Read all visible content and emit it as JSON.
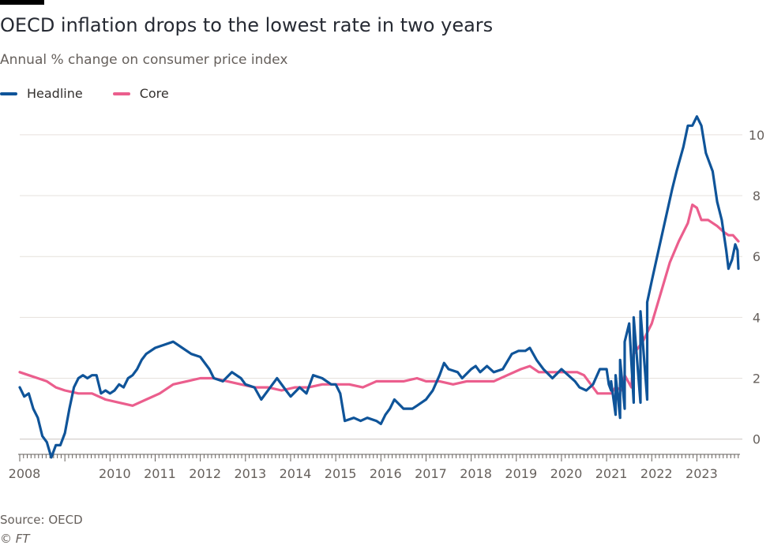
{
  "title": "OECD inflation drops to the lowest rate in two years",
  "subtitle": "Annual % change on consumer price index",
  "source": "Source: OECD",
  "credit": "© FT",
  "colors": {
    "headline": "#0f5499",
    "core": "#eb5e8d",
    "grid": "#e6e1dc",
    "axis": "#66605c",
    "text": "#262a33"
  },
  "chart_data": {
    "type": "line",
    "title": "OECD inflation drops to the lowest rate in two years",
    "subtitle": "Annual % change on consumer price index",
    "xlabel": "",
    "ylabel": "",
    "xlim": [
      2008.0,
      2023.92
    ],
    "ylim": [
      -0.5,
      10.8
    ],
    "yticks": [
      0,
      2,
      4,
      6,
      8,
      10
    ],
    "xticks": [
      2008,
      2010,
      2011,
      2012,
      2013,
      2014,
      2015,
      2016,
      2017,
      2018,
      2019,
      2020,
      2021,
      2022,
      2023
    ],
    "legend_position": "top-left",
    "grid": true,
    "series": [
      {
        "name": "Headline",
        "color": "#0f5499",
        "points": [
          [
            2008.0,
            1.7
          ],
          [
            2008.1,
            1.4
          ],
          [
            2008.2,
            1.5
          ],
          [
            2008.3,
            1.0
          ],
          [
            2008.4,
            0.7
          ],
          [
            2008.5,
            0.1
          ],
          [
            2008.6,
            -0.1
          ],
          [
            2008.7,
            -0.6
          ],
          [
            2008.8,
            -0.2
          ],
          [
            2008.9,
            -0.2
          ],
          [
            2009.0,
            0.2
          ],
          [
            2009.1,
            1.0
          ],
          [
            2009.2,
            1.7
          ],
          [
            2009.3,
            2.0
          ],
          [
            2009.4,
            2.1
          ],
          [
            2009.5,
            2.0
          ],
          [
            2009.6,
            2.1
          ],
          [
            2009.7,
            2.1
          ],
          [
            2009.8,
            1.5
          ],
          [
            2009.9,
            1.6
          ],
          [
            2010.0,
            1.5
          ],
          [
            2010.1,
            1.6
          ],
          [
            2010.2,
            1.8
          ],
          [
            2010.3,
            1.7
          ],
          [
            2010.4,
            2.0
          ],
          [
            2010.5,
            2.1
          ],
          [
            2010.6,
            2.3
          ],
          [
            2010.7,
            2.6
          ],
          [
            2010.8,
            2.8
          ],
          [
            2011.0,
            3.0
          ],
          [
            2011.2,
            3.1
          ],
          [
            2011.4,
            3.2
          ],
          [
            2011.6,
            3.0
          ],
          [
            2011.8,
            2.8
          ],
          [
            2012.0,
            2.7
          ],
          [
            2012.2,
            2.3
          ],
          [
            2012.3,
            2.0
          ],
          [
            2012.5,
            1.9
          ],
          [
            2012.7,
            2.2
          ],
          [
            2012.9,
            2.0
          ],
          [
            2013.0,
            1.8
          ],
          [
            2013.2,
            1.7
          ],
          [
            2013.35,
            1.3
          ],
          [
            2013.55,
            1.7
          ],
          [
            2013.7,
            2.0
          ],
          [
            2013.9,
            1.6
          ],
          [
            2014.0,
            1.4
          ],
          [
            2014.2,
            1.7
          ],
          [
            2014.35,
            1.5
          ],
          [
            2014.5,
            2.1
          ],
          [
            2014.7,
            2.0
          ],
          [
            2014.9,
            1.8
          ],
          [
            2015.0,
            1.8
          ],
          [
            2015.1,
            1.5
          ],
          [
            2015.2,
            0.6
          ],
          [
            2015.4,
            0.7
          ],
          [
            2015.55,
            0.6
          ],
          [
            2015.7,
            0.7
          ],
          [
            2015.9,
            0.6
          ],
          [
            2016.0,
            0.5
          ],
          [
            2016.1,
            0.8
          ],
          [
            2016.2,
            1.0
          ],
          [
            2016.3,
            1.3
          ],
          [
            2016.5,
            1.0
          ],
          [
            2016.7,
            1.0
          ],
          [
            2016.8,
            1.1
          ],
          [
            2017.0,
            1.3
          ],
          [
            2017.15,
            1.6
          ],
          [
            2017.3,
            2.1
          ],
          [
            2017.4,
            2.5
          ],
          [
            2017.5,
            2.3
          ],
          [
            2017.7,
            2.2
          ],
          [
            2017.8,
            2.0
          ],
          [
            2018.0,
            2.3
          ],
          [
            2018.1,
            2.4
          ],
          [
            2018.2,
            2.2
          ],
          [
            2018.35,
            2.4
          ],
          [
            2018.5,
            2.2
          ],
          [
            2018.7,
            2.3
          ],
          [
            2018.9,
            2.8
          ],
          [
            2019.05,
            2.9
          ],
          [
            2019.2,
            2.9
          ],
          [
            2019.3,
            3.0
          ],
          [
            2019.45,
            2.6
          ],
          [
            2019.6,
            2.3
          ],
          [
            2019.8,
            2.0
          ],
          [
            2020.0,
            2.3
          ],
          [
            2020.15,
            2.1
          ],
          [
            2020.3,
            1.9
          ],
          [
            2020.4,
            1.7
          ],
          [
            2020.55,
            1.6
          ],
          [
            2020.7,
            1.8
          ],
          [
            2020.85,
            2.3
          ],
          [
            2021.0,
            2.3
          ],
          [
            2021.1,
            1.6
          ],
          [
            2021.2,
            0.8
          ],
          [
            2021.3,
            0.7
          ],
          [
            2021.4,
            1.0
          ],
          [
            2021.6,
            1.2
          ],
          [
            2021.75,
            1.2
          ],
          [
            2021.9,
            1.3
          ],
          [
            2021.05,
            1.8
          ],
          [
            2021.1,
            1.9
          ],
          [
            2021.2,
            2.1
          ],
          [
            2021.3,
            2.6
          ],
          [
            2021.4,
            3.2
          ],
          [
            2021.5,
            3.8
          ],
          [
            2021.6,
            4.0
          ],
          [
            2021.75,
            4.2
          ],
          [
            2021.9,
            4.5
          ],
          [
            2022.0,
            5.2
          ],
          [
            2022.15,
            6.2
          ],
          [
            2022.3,
            7.2
          ],
          [
            2022.45,
            8.2
          ],
          [
            2022.55,
            8.8
          ],
          [
            2022.7,
            9.6
          ],
          [
            2022.8,
            10.3
          ],
          [
            2022.9,
            10.3
          ],
          [
            2023.0,
            10.6
          ],
          [
            2023.1,
            10.3
          ],
          [
            2023.2,
            9.4
          ],
          [
            2023.35,
            8.8
          ],
          [
            2023.45,
            7.8
          ],
          [
            2023.55,
            7.2
          ],
          [
            2023.65,
            6.2
          ],
          [
            2023.7,
            5.6
          ],
          [
            2023.78,
            5.9
          ],
          [
            2023.85,
            6.4
          ],
          [
            2023.9,
            6.2
          ],
          [
            2023.92,
            5.6
          ]
        ]
      },
      {
        "name": "Core",
        "color": "#eb5e8d",
        "points": [
          [
            2008.0,
            2.2
          ],
          [
            2008.2,
            2.1
          ],
          [
            2008.4,
            2.0
          ],
          [
            2008.6,
            1.9
          ],
          [
            2008.8,
            1.7
          ],
          [
            2009.0,
            1.6
          ],
          [
            2009.3,
            1.5
          ],
          [
            2009.6,
            1.5
          ],
          [
            2009.9,
            1.3
          ],
          [
            2010.2,
            1.2
          ],
          [
            2010.5,
            1.1
          ],
          [
            2010.8,
            1.3
          ],
          [
            2011.1,
            1.5
          ],
          [
            2011.4,
            1.8
          ],
          [
            2011.7,
            1.9
          ],
          [
            2012.0,
            2.0
          ],
          [
            2012.3,
            2.0
          ],
          [
            2012.6,
            1.9
          ],
          [
            2012.9,
            1.8
          ],
          [
            2013.2,
            1.7
          ],
          [
            2013.5,
            1.7
          ],
          [
            2013.8,
            1.6
          ],
          [
            2014.1,
            1.7
          ],
          [
            2014.4,
            1.7
          ],
          [
            2014.7,
            1.8
          ],
          [
            2015.0,
            1.8
          ],
          [
            2015.3,
            1.8
          ],
          [
            2015.6,
            1.7
          ],
          [
            2015.9,
            1.9
          ],
          [
            2016.2,
            1.9
          ],
          [
            2016.5,
            1.9
          ],
          [
            2016.8,
            2.0
          ],
          [
            2017.0,
            1.9
          ],
          [
            2017.3,
            1.9
          ],
          [
            2017.6,
            1.8
          ],
          [
            2017.9,
            1.9
          ],
          [
            2018.2,
            1.9
          ],
          [
            2018.5,
            1.9
          ],
          [
            2018.8,
            2.1
          ],
          [
            2019.1,
            2.3
          ],
          [
            2019.3,
            2.4
          ],
          [
            2019.5,
            2.2
          ],
          [
            2019.8,
            2.2
          ],
          [
            2020.1,
            2.2
          ],
          [
            2020.35,
            2.2
          ],
          [
            2020.5,
            2.1
          ],
          [
            2020.8,
            1.5
          ],
          [
            2021.1,
            1.5
          ],
          [
            2021.35,
            1.6
          ],
          [
            2021.55,
            1.7
          ],
          [
            2021.2,
            1.7
          ],
          [
            2021.4,
            2.1
          ],
          [
            2021.6,
            2.8
          ],
          [
            2021.8,
            3.2
          ],
          [
            2022.0,
            3.8
          ],
          [
            2022.2,
            4.8
          ],
          [
            2022.4,
            5.8
          ],
          [
            2022.6,
            6.5
          ],
          [
            2022.8,
            7.1
          ],
          [
            2022.9,
            7.7
          ],
          [
            2023.0,
            7.6
          ],
          [
            2023.1,
            7.2
          ],
          [
            2023.25,
            7.2
          ],
          [
            2023.45,
            7.0
          ],
          [
            2023.6,
            6.8
          ],
          [
            2023.7,
            6.7
          ],
          [
            2023.8,
            6.7
          ],
          [
            2023.92,
            6.5
          ]
        ]
      }
    ]
  }
}
